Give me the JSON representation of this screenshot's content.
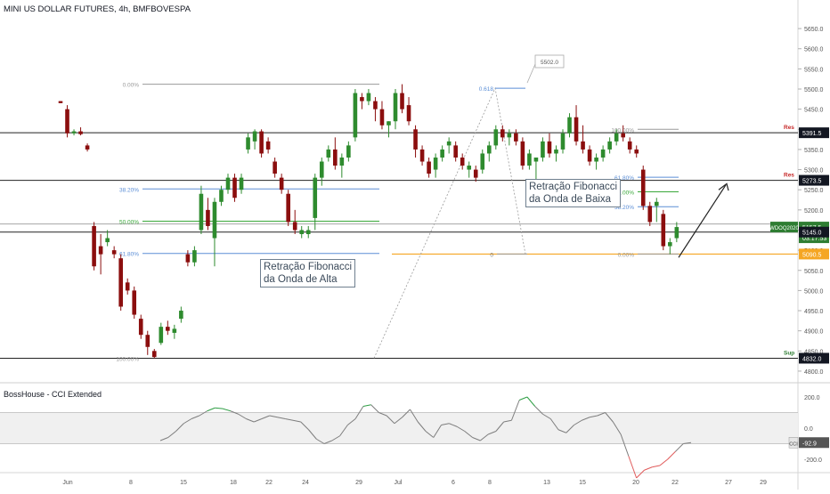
{
  "header": {
    "title": "MINI US DOLLAR FUTURES, 4h, BMFBOVESPA"
  },
  "indicator": {
    "title": "BossHouse - CCI Extended"
  },
  "annotations": {
    "wave_up": [
      "Retração Fibonacci",
      "da Onda de Alta"
    ],
    "wave_down": [
      "Retração Fibonacci",
      "da Onda de Baixa"
    ]
  },
  "colors": {
    "up": "#2e8b2e",
    "down": "#8b0e0e",
    "fib_blue": "#5b8ed6",
    "fib_green": "#3aa83a",
    "fib_gray": "#9a9a9a",
    "support_orange": "#f5a623",
    "last_price": "#2e7d32",
    "cci_line": "#7d7d7d",
    "cci_up": "#2e9e44",
    "cci_down": "#e05a5a"
  },
  "chart_data": [
    {
      "type": "candlestick",
      "title": "MINI US DOLLAR FUTURES, 4h, BMFBOVESPA",
      "y_axis": {
        "position": "right",
        "range": [
          4780,
          5690
        ],
        "ticks": [
          4800,
          4850,
          4900,
          4950,
          5000,
          5050,
          5100,
          5150,
          5200,
          5250,
          5300,
          5350,
          5400,
          5450,
          5500,
          5550,
          5600,
          5650
        ],
        "tick_labels": [
          "4800.0",
          "4850.0",
          "4900.0",
          "4950.0",
          "5000.0",
          "5050.0",
          "5100.0",
          "5150.0",
          "5200.0",
          "5250.0",
          "5300.0",
          "5350.0",
          "5400.0",
          "5450.0",
          "5500.0",
          "5550.0",
          "5600.0",
          "5650.0"
        ]
      },
      "x_axis": {
        "tick_labels": [
          "Jun",
          "8",
          "15",
          "18",
          "22",
          "24",
          "29",
          "Jul",
          "6",
          "8",
          "13",
          "15",
          "20",
          "22",
          "27",
          "29"
        ]
      },
      "price_labels": [
        {
          "text": "5391.5",
          "value": 5391.5,
          "style": "level"
        },
        {
          "text": "5273.5",
          "value": 5273.5,
          "style": "level"
        },
        {
          "text": "WDOQ2020",
          "value": 5157.5,
          "style": "symbol"
        },
        {
          "text": "5157.5",
          "value": 5157.5,
          "style": "last"
        },
        {
          "text": "03:17:53",
          "value": 5157.5,
          "style": "timer"
        },
        {
          "text": "5145.0",
          "value": 5145.0,
          "style": "level"
        },
        {
          "text": "5090.5",
          "value": 5090.5,
          "style": "orange"
        },
        {
          "text": "4832.0",
          "value": 4832.0,
          "style": "level"
        }
      ],
      "levels": [
        {
          "value": 5391.5,
          "label": "Res"
        },
        {
          "value": 5273.5,
          "label": "Res"
        },
        {
          "value": 5145.0,
          "label": "Sup"
        },
        {
          "value": 4832.0,
          "label": "Sup"
        }
      ],
      "fib_up_wave": [
        {
          "label": "0.00%",
          "value": 5512
        },
        {
          "label": "38.20%",
          "value": 5252
        },
        {
          "label": "50.00%",
          "value": 5172
        },
        {
          "label": "61.80%",
          "value": 5092
        },
        {
          "label": "100.00%",
          "value": 4832
        }
      ],
      "fib_down_wave": [
        {
          "label": "100.00%",
          "value": 5400
        },
        {
          "label": "61.80%",
          "value": 5281
        },
        {
          "label": "50.00%",
          "value": 5245
        },
        {
          "label": "38.20%",
          "value": 5208
        },
        {
          "label": "0.00%",
          "value": 5090.5
        }
      ],
      "projection": {
        "label_ratio": "0.618",
        "target_text": "5502.0",
        "target": 5502,
        "zero_label": "0"
      },
      "candles": [
        {
          "o": 5470,
          "h": 5470,
          "l": 5465,
          "c": 5465
        },
        {
          "o": 5450,
          "h": 5460,
          "l": 5380,
          "c": 5390
        },
        {
          "o": 5390,
          "h": 5400,
          "l": 5385,
          "c": 5395
        },
        {
          "o": 5395,
          "h": 5405,
          "l": 5385,
          "c": 5388
        },
        {
          "o": 5360,
          "h": 5365,
          "l": 5345,
          "c": 5350
        },
        {
          "o": 5160,
          "h": 5170,
          "l": 5050,
          "c": 5060
        },
        {
          "o": 5110,
          "h": 5140,
          "l": 5040,
          "c": 5090
        },
        {
          "o": 5120,
          "h": 5150,
          "l": 5110,
          "c": 5130
        },
        {
          "o": 5100,
          "h": 5110,
          "l": 5080,
          "c": 5090
        },
        {
          "o": 5080,
          "h": 5090,
          "l": 4950,
          "c": 4960
        },
        {
          "o": 5020,
          "h": 5030,
          "l": 4990,
          "c": 5000
        },
        {
          "o": 5000,
          "h": 5010,
          "l": 4930,
          "c": 4940
        },
        {
          "o": 4930,
          "h": 4940,
          "l": 4880,
          "c": 4890
        },
        {
          "o": 4890,
          "h": 4900,
          "l": 4840,
          "c": 4860
        },
        {
          "o": 4850,
          "h": 4855,
          "l": 4832,
          "c": 4835
        },
        {
          "o": 4870,
          "h": 4920,
          "l": 4865,
          "c": 4910
        },
        {
          "o": 4910,
          "h": 4925,
          "l": 4890,
          "c": 4900
        },
        {
          "o": 4895,
          "h": 4915,
          "l": 4880,
          "c": 4905
        },
        {
          "o": 4930,
          "h": 4960,
          "l": 4920,
          "c": 4950
        },
        {
          "o": 5090,
          "h": 5100,
          "l": 5060,
          "c": 5070
        },
        {
          "o": 5070,
          "h": 5110,
          "l": 5060,
          "c": 5100
        },
        {
          "o": 5150,
          "h": 5260,
          "l": 5140,
          "c": 5240
        },
        {
          "o": 5200,
          "h": 5230,
          "l": 5150,
          "c": 5160
        },
        {
          "o": 5130,
          "h": 5230,
          "l": 5060,
          "c": 5220
        },
        {
          "o": 5220,
          "h": 5260,
          "l": 5210,
          "c": 5250
        },
        {
          "o": 5250,
          "h": 5290,
          "l": 5240,
          "c": 5280
        },
        {
          "o": 5280,
          "h": 5290,
          "l": 5220,
          "c": 5230
        },
        {
          "o": 5250,
          "h": 5290,
          "l": 5240,
          "c": 5280
        },
        {
          "o": 5350,
          "h": 5390,
          "l": 5340,
          "c": 5380
        },
        {
          "o": 5370,
          "h": 5400,
          "l": 5350,
          "c": 5395
        },
        {
          "o": 5395,
          "h": 5400,
          "l": 5330,
          "c": 5340
        },
        {
          "o": 5370,
          "h": 5380,
          "l": 5340,
          "c": 5350
        },
        {
          "o": 5320,
          "h": 5330,
          "l": 5280,
          "c": 5290
        },
        {
          "o": 5280,
          "h": 5290,
          "l": 5240,
          "c": 5250
        },
        {
          "o": 5240,
          "h": 5250,
          "l": 5160,
          "c": 5170
        },
        {
          "o": 5170,
          "h": 5200,
          "l": 5140,
          "c": 5150
        },
        {
          "o": 5140,
          "h": 5160,
          "l": 5130,
          "c": 5150
        },
        {
          "o": 5140,
          "h": 5160,
          "l": 5130,
          "c": 5150
        },
        {
          "o": 5180,
          "h": 5290,
          "l": 5150,
          "c": 5280
        },
        {
          "o": 5280,
          "h": 5330,
          "l": 5260,
          "c": 5320
        },
        {
          "o": 5330,
          "h": 5360,
          "l": 5320,
          "c": 5350
        },
        {
          "o": 5350,
          "h": 5380,
          "l": 5300,
          "c": 5310
        },
        {
          "o": 5310,
          "h": 5340,
          "l": 5280,
          "c": 5330
        },
        {
          "o": 5330,
          "h": 5370,
          "l": 5320,
          "c": 5360
        },
        {
          "o": 5380,
          "h": 5500,
          "l": 5370,
          "c": 5490
        },
        {
          "o": 5480,
          "h": 5490,
          "l": 5450,
          "c": 5470
        },
        {
          "o": 5470,
          "h": 5500,
          "l": 5460,
          "c": 5490
        },
        {
          "o": 5470,
          "h": 5480,
          "l": 5420,
          "c": 5450
        },
        {
          "o": 5450,
          "h": 5470,
          "l": 5400,
          "c": 5410
        },
        {
          "o": 5410,
          "h": 5420,
          "l": 5380,
          "c": 5420
        },
        {
          "o": 5420,
          "h": 5500,
          "l": 5400,
          "c": 5490
        },
        {
          "o": 5490,
          "h": 5512,
          "l": 5440,
          "c": 5450
        },
        {
          "o": 5460,
          "h": 5480,
          "l": 5410,
          "c": 5420
        },
        {
          "o": 5400,
          "h": 5410,
          "l": 5330,
          "c": 5350
        },
        {
          "o": 5350,
          "h": 5360,
          "l": 5310,
          "c": 5320
        },
        {
          "o": 5320,
          "h": 5330,
          "l": 5280,
          "c": 5290
        },
        {
          "o": 5300,
          "h": 5340,
          "l": 5280,
          "c": 5330
        },
        {
          "o": 5330,
          "h": 5360,
          "l": 5320,
          "c": 5350
        },
        {
          "o": 5360,
          "h": 5380,
          "l": 5340,
          "c": 5370
        },
        {
          "o": 5360,
          "h": 5370,
          "l": 5320,
          "c": 5330
        },
        {
          "o": 5330,
          "h": 5340,
          "l": 5300,
          "c": 5310
        },
        {
          "o": 5300,
          "h": 5320,
          "l": 5280,
          "c": 5310
        },
        {
          "o": 5300,
          "h": 5310,
          "l": 5270,
          "c": 5280
        },
        {
          "o": 5300,
          "h": 5350,
          "l": 5290,
          "c": 5340
        },
        {
          "o": 5340,
          "h": 5370,
          "l": 5320,
          "c": 5360
        },
        {
          "o": 5360,
          "h": 5410,
          "l": 5350,
          "c": 5400
        },
        {
          "o": 5400,
          "h": 5410,
          "l": 5370,
          "c": 5380
        },
        {
          "o": 5380,
          "h": 5400,
          "l": 5360,
          "c": 5390
        },
        {
          "o": 5390,
          "h": 5400,
          "l": 5360,
          "c": 5370
        },
        {
          "o": 5370,
          "h": 5380,
          "l": 5300,
          "c": 5310
        },
        {
          "o": 5310,
          "h": 5350,
          "l": 5300,
          "c": 5340
        },
        {
          "o": 5320,
          "h": 5330,
          "l": 5260,
          "c": 5330
        },
        {
          "o": 5330,
          "h": 5380,
          "l": 5320,
          "c": 5370
        },
        {
          "o": 5370,
          "h": 5390,
          "l": 5330,
          "c": 5340
        },
        {
          "o": 5340,
          "h": 5360,
          "l": 5320,
          "c": 5350
        },
        {
          "o": 5350,
          "h": 5400,
          "l": 5340,
          "c": 5390
        },
        {
          "o": 5390,
          "h": 5440,
          "l": 5380,
          "c": 5430
        },
        {
          "o": 5430,
          "h": 5460,
          "l": 5360,
          "c": 5370
        },
        {
          "o": 5370,
          "h": 5410,
          "l": 5340,
          "c": 5350
        },
        {
          "o": 5350,
          "h": 5360,
          "l": 5310,
          "c": 5320
        },
        {
          "o": 5320,
          "h": 5340,
          "l": 5300,
          "c": 5330
        },
        {
          "o": 5330,
          "h": 5360,
          "l": 5320,
          "c": 5350
        },
        {
          "o": 5350,
          "h": 5380,
          "l": 5340,
          "c": 5370
        },
        {
          "o": 5370,
          "h": 5400,
          "l": 5360,
          "c": 5390
        },
        {
          "o": 5390,
          "h": 5410,
          "l": 5370,
          "c": 5380
        },
        {
          "o": 5370,
          "h": 5380,
          "l": 5340,
          "c": 5350
        },
        {
          "o": 5350,
          "h": 5360,
          "l": 5330,
          "c": 5340
        },
        {
          "o": 5300,
          "h": 5310,
          "l": 5200,
          "c": 5210
        },
        {
          "o": 5210,
          "h": 5220,
          "l": 5160,
          "c": 5170
        },
        {
          "o": 5210,
          "h": 5230,
          "l": 5170,
          "c": 5220
        },
        {
          "o": 5190,
          "h": 5200,
          "l": 5100,
          "c": 5110
        },
        {
          "o": 5110,
          "h": 5130,
          "l": 5090,
          "c": 5120
        },
        {
          "o": 5130,
          "h": 5170,
          "l": 5120,
          "c": 5157.5
        }
      ]
    },
    {
      "type": "line",
      "title": "BossHouse - CCI Extended",
      "y_axis": {
        "range": [
          -280,
          280
        ],
        "tick_labels": [
          "200.0",
          "0.0",
          "-200.0"
        ],
        "ticks": [
          200,
          0,
          -200
        ]
      },
      "bands": [
        100,
        -100
      ],
      "last_label": "CCI",
      "last_value_text": "-92.9",
      "last_value": -92.9,
      "series": [
        {
          "values": [
            -80,
            -60,
            -20,
            30,
            60,
            80,
            110,
            130,
            125,
            110,
            90,
            60,
            40,
            60,
            80,
            70,
            60,
            50,
            40,
            -10,
            -70,
            -100,
            -80,
            -50,
            20,
            60,
            140,
            150,
            100,
            80,
            30,
            70,
            120,
            40,
            -20,
            -60,
            20,
            30,
            10,
            -20,
            -60,
            -80,
            -40,
            -20,
            40,
            50,
            180,
            200,
            140,
            90,
            60,
            -10,
            -30,
            20,
            50,
            70,
            80,
            100,
            40,
            -40,
            -180,
            -320,
            -270,
            -250,
            -240,
            -200,
            -150,
            -100,
            -92.9
          ]
        }
      ]
    }
  ]
}
